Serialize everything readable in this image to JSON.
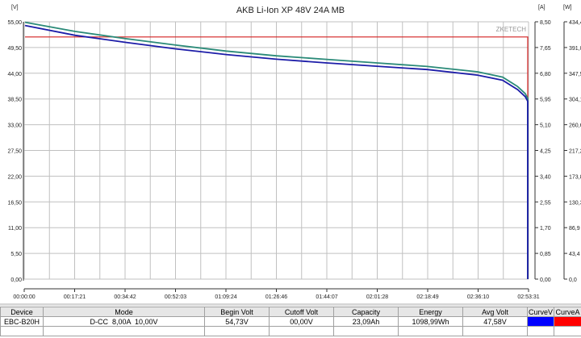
{
  "chart_data": {
    "type": "line",
    "title": "AKB Li-Ion XP 48V 24A MB",
    "watermark": "ZKETECH",
    "y_left": {
      "unit": "[V]",
      "range": [
        0,
        55
      ],
      "ticks": [
        "0,00",
        "5,50",
        "11,00",
        "16,50",
        "22,00",
        "27,50",
        "33,00",
        "38,50",
        "44,00",
        "49,50",
        "55,00"
      ]
    },
    "y_right_current": {
      "unit": "[A]",
      "range": [
        0,
        8.5
      ],
      "ticks": [
        "0,00",
        "0,85",
        "1,70",
        "2,55",
        "3,40",
        "4,25",
        "5,10",
        "5,95",
        "6,80",
        "7,65",
        "8,50"
      ]
    },
    "y_right_power": {
      "unit": "[W]",
      "range": [
        0,
        434.4
      ],
      "ticks": [
        "0,0",
        "43,4",
        "86,9",
        "130,3",
        "173,8",
        "217,2",
        "260,6",
        "304,1",
        "347,5",
        "391,0",
        "434,4"
      ]
    },
    "x": {
      "range_seconds": [
        0,
        10411
      ],
      "ticks": [
        "00:00:00",
        "00:17:21",
        "00:34:42",
        "00:52:03",
        "01:09:24",
        "01:26:46",
        "01:44:07",
        "02:01:28",
        "02:18:49",
        "02:36:10",
        "02:53:31"
      ]
    },
    "grid": true,
    "series": [
      {
        "name": "Voltage",
        "axis": "V",
        "color": "#1c1ca8",
        "x_fraction": [
          0,
          0.1,
          0.2,
          0.3,
          0.4,
          0.5,
          0.6,
          0.7,
          0.8,
          0.9,
          0.95,
          0.98,
          0.995,
          1.0,
          1.0
        ],
        "values": [
          54.2,
          52.1,
          50.6,
          49.2,
          48.0,
          47.0,
          46.2,
          45.5,
          44.8,
          43.6,
          42.5,
          40.5,
          39.0,
          38.0,
          0
        ]
      },
      {
        "name": "Power",
        "axis": "W",
        "color": "#2a8a78",
        "x_fraction": [
          0,
          0.1,
          0.2,
          0.3,
          0.4,
          0.5,
          0.6,
          0.7,
          0.8,
          0.9,
          0.95,
          0.98,
          0.995,
          1.0,
          1.0
        ],
        "values": [
          433.6,
          418,
          406,
          395,
          385,
          377,
          371,
          365,
          359,
          350,
          341,
          325,
          313,
          305,
          0
        ]
      },
      {
        "name": "Current",
        "axis": "A",
        "color": "#d42020",
        "x_fraction": [
          0,
          1.0,
          1.0
        ],
        "values": [
          8.0,
          8.0,
          0
        ]
      }
    ]
  },
  "table": {
    "headers": [
      "Device",
      "Mode",
      "Begin Volt",
      "Cutoff Volt",
      "Capacity",
      "Energy",
      "Avg Volt",
      "CurveV",
      "CurveA"
    ],
    "row": [
      "EBC-B20H",
      "D-CC  8,00A  10,00V",
      "54,73V",
      "00,00V",
      "23,09Ah",
      "1098,99Wh",
      "47,58V"
    ],
    "curve_colors": {
      "v": "#0000ff",
      "a": "#ff0000"
    }
  }
}
